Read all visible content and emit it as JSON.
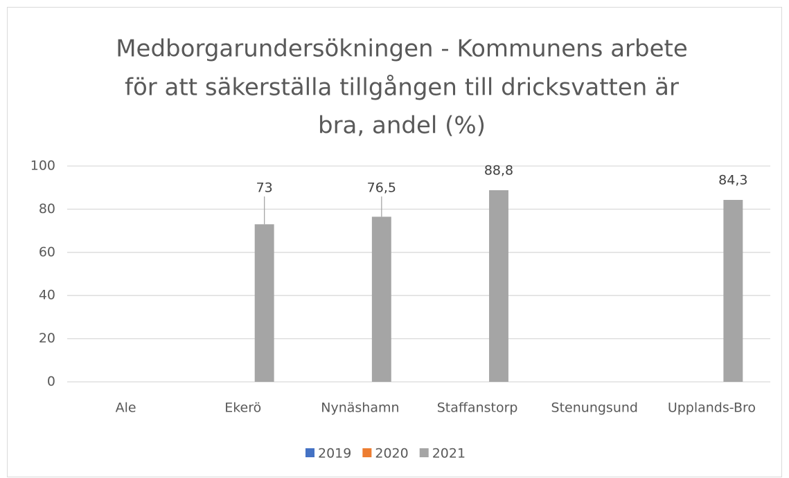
{
  "chart_data": {
    "type": "bar",
    "title": [
      "Medborgarundersökningen  - Kommunens arbete",
      "för att säkerställa tillgången till dricksvatten är",
      "bra, andel (%)"
    ],
    "categories": [
      "Ale",
      "Ekerö",
      "Nynäshamn",
      "Staffanstorp",
      "Stenungsund",
      "Upplands-Bro"
    ],
    "series": [
      {
        "name": "2019",
        "color": "#4472c4",
        "values": [
          null,
          null,
          null,
          null,
          null,
          null
        ]
      },
      {
        "name": "2020",
        "color": "#ed7d31",
        "values": [
          null,
          null,
          null,
          null,
          null,
          null
        ]
      },
      {
        "name": "2021",
        "color": "#a5a5a5",
        "values": [
          null,
          73,
          76.5,
          88.8,
          null,
          84.3
        ],
        "value_labels": [
          null,
          "73",
          "76,5",
          "88,8",
          null,
          "84,3"
        ]
      }
    ],
    "ylim": [
      0,
      100
    ],
    "yticks": [
      0,
      20,
      40,
      60,
      80,
      100
    ],
    "grid": true,
    "legend": "bottom"
  }
}
